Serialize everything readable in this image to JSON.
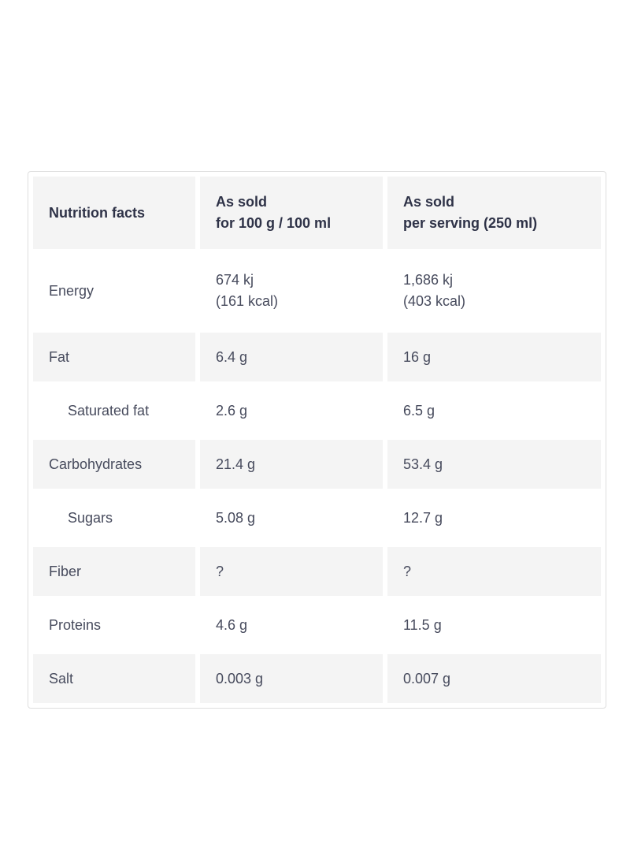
{
  "table": {
    "header": {
      "col1": "Nutrition facts",
      "col2_line1": "As sold",
      "col2_line2": "for 100 g / 100 ml",
      "col3_line1": "As sold",
      "col3_line2": "per serving (250 ml)"
    },
    "rows": [
      {
        "label": "Energy",
        "per100_line1": "674 kj",
        "per100_line2": "(161 kcal)",
        "serving_line1": "1,686 kj",
        "serving_line2": "(403 kcal)"
      },
      {
        "label": "Fat",
        "per100": "6.4 g",
        "serving": "16 g"
      },
      {
        "label": "Saturated fat",
        "per100": "2.6 g",
        "serving": "6.5 g"
      },
      {
        "label": "Carbohydrates",
        "per100": "21.4 g",
        "serving": "53.4 g"
      },
      {
        "label": "Sugars",
        "per100": "5.08 g",
        "serving": "12.7 g"
      },
      {
        "label": "Fiber",
        "per100": "?",
        "serving": "?"
      },
      {
        "label": "Proteins",
        "per100": "4.6 g",
        "serving": "11.5 g"
      },
      {
        "label": "Salt",
        "per100": "0.003 g",
        "serving": "0.007 g"
      }
    ],
    "colors": {
      "stripe_background": "#f4f4f4",
      "table_border": "#dedede",
      "header_text": "#2e3247",
      "body_text": "#474b5d"
    }
  }
}
